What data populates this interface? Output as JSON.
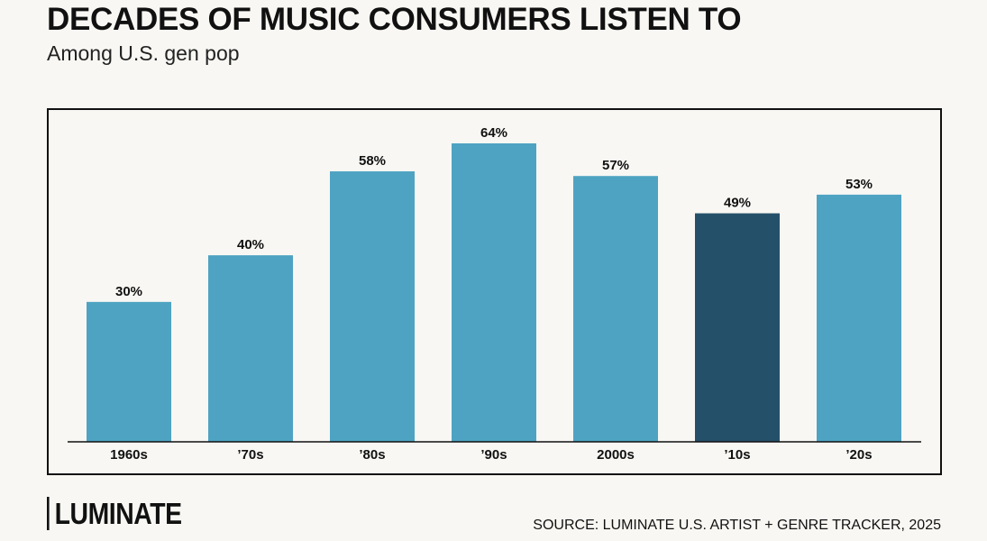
{
  "header": {
    "title": "DECADES OF MUSIC CONSUMERS LISTEN TO",
    "subtitle": "Among U.S. gen pop"
  },
  "footer": {
    "logo_text": "LUMINATE",
    "source": "SOURCE: LUMINATE U.S. ARTIST + GENRE TRACKER, 2025"
  },
  "colors": {
    "bar": "#4ea3c2",
    "highlight_bar": "#255069",
    "axis": "#111111"
  },
  "chart_data": {
    "type": "bar",
    "title": "DECADES OF MUSIC CONSUMERS LISTEN TO",
    "subtitle": "Among U.S. gen pop",
    "categories": [
      "1960s",
      "’70s",
      "’80s",
      "’90s",
      "2000s",
      "’10s",
      "’20s"
    ],
    "values": [
      30,
      40,
      58,
      64,
      57,
      49,
      53
    ],
    "data_labels": [
      "30%",
      "40%",
      "58%",
      "64%",
      "57%",
      "49%",
      "53%"
    ],
    "highlighted_category": "’10s",
    "ylim": [
      0,
      70
    ],
    "grid": false,
    "legend": "none"
  }
}
